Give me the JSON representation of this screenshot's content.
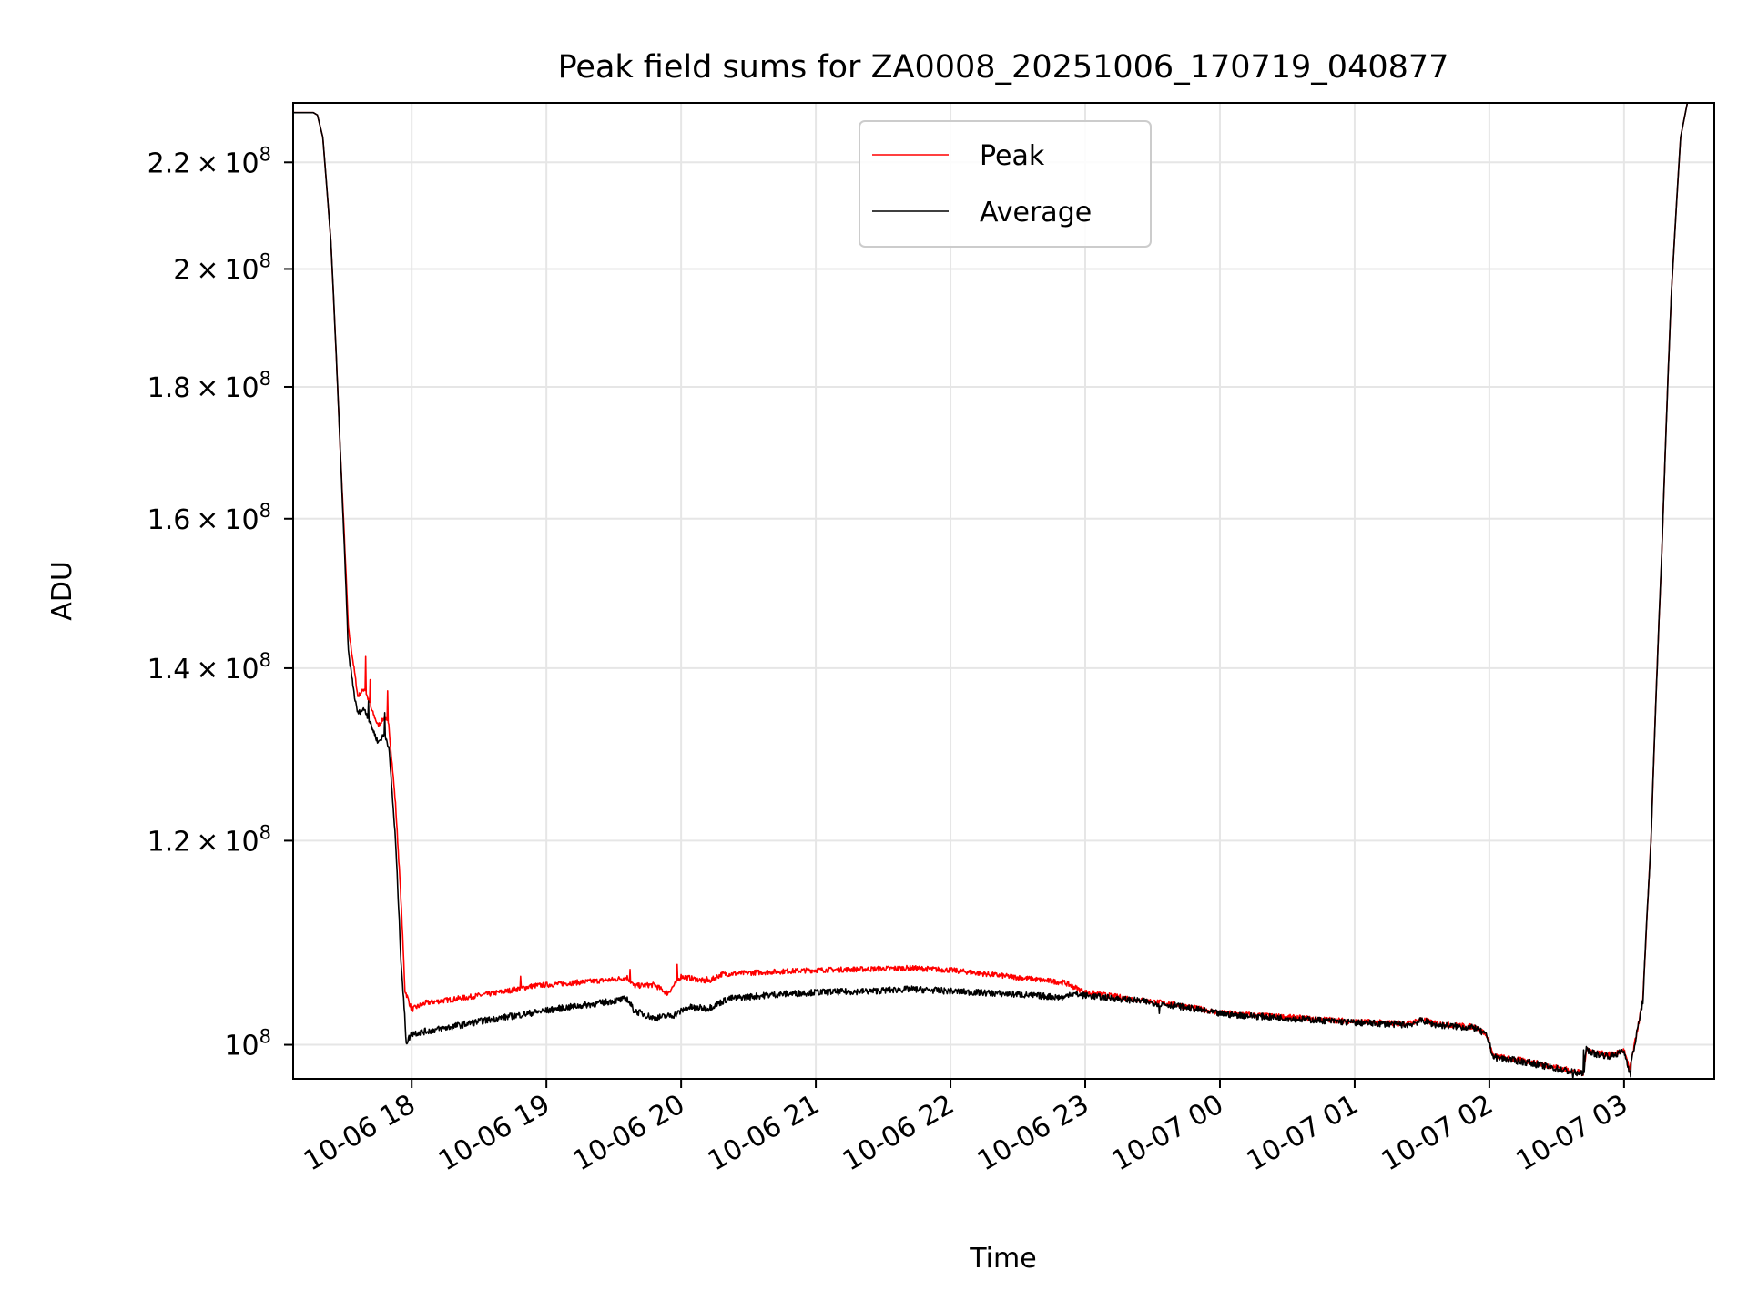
{
  "chart_data": {
    "type": "line",
    "title": "Peak field sums for ZA0008_20251006_170719_040877",
    "xlabel": "Time",
    "ylabel": "ADU",
    "x_unit": "hours after 2025-10-06 00:00",
    "xlim": [
      17.12,
      27.67
    ],
    "ylim": [
      97000000,
      232000000
    ],
    "yscale": "log",
    "grid": true,
    "legend_position": "top-center",
    "x_ticks": [
      {
        "value": 18,
        "label": "10-06 18"
      },
      {
        "value": 19,
        "label": "10-06 19"
      },
      {
        "value": 20,
        "label": "10-06 20"
      },
      {
        "value": 21,
        "label": "10-06 21"
      },
      {
        "value": 22,
        "label": "10-06 22"
      },
      {
        "value": 23,
        "label": "10-06 23"
      },
      {
        "value": 24,
        "label": "10-07 00"
      },
      {
        "value": 25,
        "label": "10-07 01"
      },
      {
        "value": 26,
        "label": "10-07 02"
      },
      {
        "value": 27,
        "label": "10-07 03"
      }
    ],
    "y_ticks": [
      {
        "value": 100000000,
        "mantissa": "",
        "exponent": "8"
      },
      {
        "value": 120000000,
        "mantissa": "1.2",
        "exponent": "8"
      },
      {
        "value": 140000000,
        "mantissa": "1.4",
        "exponent": "8"
      },
      {
        "value": 160000000,
        "mantissa": "1.6",
        "exponent": "8"
      },
      {
        "value": 180000000,
        "mantissa": "1.8",
        "exponent": "8"
      },
      {
        "value": 200000000,
        "mantissa": "2",
        "exponent": "8"
      },
      {
        "value": 220000000,
        "mantissa": "2.2",
        "exponent": "8"
      }
    ],
    "y_tick_prefix": "10",
    "times_symbol": "×",
    "series": [
      {
        "name": "Peak",
        "color": "#ff0000",
        "noise_amp": 250000,
        "spikes": [
          [
            17.66,
            141500000
          ],
          [
            17.69,
            138500000
          ],
          [
            17.82,
            137000000
          ],
          [
            18.81,
            106200000
          ],
          [
            19.62,
            107000000
          ],
          [
            19.97,
            107200000
          ],
          [
            20.19,
            106300000
          ],
          [
            23.62,
            104000000
          ],
          [
            23.68,
            103700000
          ]
        ],
        "points": [
          [
            17.12,
            230000000
          ],
          [
            17.27,
            230000000
          ],
          [
            17.3,
            229500000
          ],
          [
            17.34,
            225000000
          ],
          [
            17.4,
            205000000
          ],
          [
            17.47,
            170000000
          ],
          [
            17.53,
            145000000
          ],
          [
            17.58,
            139000000
          ],
          [
            17.6,
            136500000
          ],
          [
            17.65,
            137500000
          ],
          [
            17.7,
            135000000
          ],
          [
            17.75,
            133000000
          ],
          [
            17.8,
            134000000
          ],
          [
            17.83,
            133000000
          ],
          [
            17.88,
            124000000
          ],
          [
            17.92,
            114000000
          ],
          [
            17.95,
            105000000
          ],
          [
            18.0,
            103200000
          ],
          [
            18.1,
            103800000
          ],
          [
            18.4,
            104300000
          ],
          [
            18.7,
            104900000
          ],
          [
            18.9,
            105400000
          ],
          [
            19.2,
            105700000
          ],
          [
            19.5,
            106000000
          ],
          [
            19.6,
            106200000
          ],
          [
            19.65,
            105400000
          ],
          [
            19.8,
            105500000
          ],
          [
            19.9,
            104700000
          ],
          [
            20.0,
            106300000
          ],
          [
            20.2,
            105800000
          ],
          [
            20.3,
            106500000
          ],
          [
            20.6,
            106700000
          ],
          [
            21.0,
            106900000
          ],
          [
            21.4,
            107000000
          ],
          [
            21.7,
            107100000
          ],
          [
            22.0,
            106900000
          ],
          [
            22.5,
            106200000
          ],
          [
            22.85,
            105700000
          ],
          [
            23.0,
            104800000
          ],
          [
            23.4,
            104100000
          ],
          [
            23.7,
            103600000
          ],
          [
            24.0,
            102900000
          ],
          [
            24.5,
            102500000
          ],
          [
            25.0,
            102100000
          ],
          [
            25.4,
            101900000
          ],
          [
            25.5,
            102300000
          ],
          [
            25.6,
            101900000
          ],
          [
            25.9,
            101600000
          ],
          [
            25.98,
            100900000
          ],
          [
            26.03,
            99000000
          ],
          [
            26.3,
            98500000
          ],
          [
            26.65,
            97600000
          ],
          [
            26.7,
            97500000
          ],
          [
            26.72,
            99700000
          ],
          [
            26.78,
            99300000
          ],
          [
            26.9,
            99100000
          ],
          [
            27.0,
            99500000
          ],
          [
            27.04,
            97800000
          ],
          [
            27.07,
            99500000
          ],
          [
            27.14,
            104000000
          ],
          [
            27.2,
            120000000
          ],
          [
            27.28,
            155000000
          ],
          [
            27.35,
            195000000
          ],
          [
            27.42,
            225000000
          ],
          [
            27.47,
            232000000
          ],
          [
            27.67,
            232000000
          ]
        ]
      },
      {
        "name": "Average",
        "color": "#000000",
        "noise_amp": 300000,
        "spikes": [
          [
            17.68,
            136000000
          ],
          [
            17.8,
            134500000
          ],
          [
            19.55,
            104100000
          ],
          [
            20.1,
            103200000
          ],
          [
            23.55,
            102600000
          ],
          [
            26.62,
            96900000
          ],
          [
            26.7,
            99800000
          ],
          [
            27.05,
            97300000
          ]
        ],
        "points": [
          [
            17.12,
            230000000
          ],
          [
            17.27,
            230000000
          ],
          [
            17.3,
            229500000
          ],
          [
            17.34,
            225000000
          ],
          [
            17.4,
            205000000
          ],
          [
            17.47,
            170000000
          ],
          [
            17.53,
            142000000
          ],
          [
            17.58,
            136000000
          ],
          [
            17.6,
            134500000
          ],
          [
            17.65,
            135000000
          ],
          [
            17.7,
            133000000
          ],
          [
            17.75,
            131000000
          ],
          [
            17.8,
            132000000
          ],
          [
            17.83,
            130500000
          ],
          [
            17.88,
            120000000
          ],
          [
            17.92,
            108000000
          ],
          [
            17.96,
            100200000
          ],
          [
            18.0,
            101000000
          ],
          [
            18.2,
            101400000
          ],
          [
            18.5,
            102100000
          ],
          [
            18.8,
            102700000
          ],
          [
            19.1,
            103300000
          ],
          [
            19.4,
            103800000
          ],
          [
            19.6,
            104200000
          ],
          [
            19.65,
            103100000
          ],
          [
            19.8,
            102400000
          ],
          [
            19.95,
            102700000
          ],
          [
            20.05,
            103400000
          ],
          [
            20.2,
            103300000
          ],
          [
            20.35,
            104200000
          ],
          [
            20.7,
            104600000
          ],
          [
            21.0,
            104800000
          ],
          [
            21.4,
            104900000
          ],
          [
            21.7,
            105100000
          ],
          [
            22.0,
            104900000
          ],
          [
            22.5,
            104600000
          ],
          [
            22.85,
            104300000
          ],
          [
            22.88,
            104700000
          ],
          [
            23.0,
            104500000
          ],
          [
            23.4,
            104000000
          ],
          [
            23.7,
            103500000
          ],
          [
            24.0,
            102800000
          ],
          [
            24.5,
            102400000
          ],
          [
            25.0,
            102000000
          ],
          [
            25.4,
            101800000
          ],
          [
            25.5,
            102200000
          ],
          [
            25.6,
            101800000
          ],
          [
            25.9,
            101500000
          ],
          [
            25.98,
            100800000
          ],
          [
            26.03,
            98900000
          ],
          [
            26.3,
            98400000
          ],
          [
            26.65,
            97500000
          ],
          [
            26.7,
            97400000
          ],
          [
            26.72,
            99600000
          ],
          [
            26.78,
            99200000
          ],
          [
            26.9,
            99000000
          ],
          [
            27.0,
            99400000
          ],
          [
            27.04,
            97700000
          ],
          [
            27.07,
            99400000
          ],
          [
            27.14,
            104000000
          ],
          [
            27.2,
            120000000
          ],
          [
            27.28,
            155000000
          ],
          [
            27.35,
            195000000
          ],
          [
            27.42,
            225000000
          ],
          [
            27.47,
            232000000
          ],
          [
            27.67,
            232000000
          ]
        ]
      }
    ]
  }
}
